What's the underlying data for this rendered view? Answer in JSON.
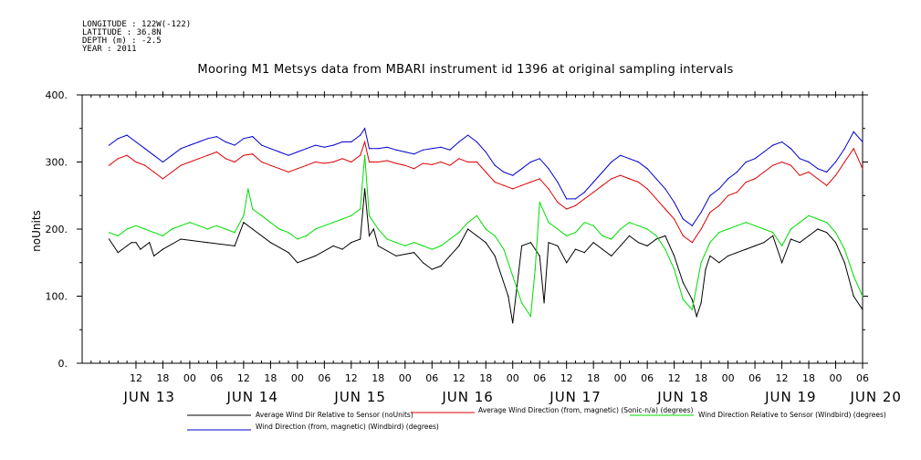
{
  "metadata": [
    "LONGITUDE : 122W(-122)",
    "LATITUDE : 36.8N",
    "DEPTH (m) : -2.5",
    "YEAR : 2011"
  ],
  "chart_data": {
    "type": "line",
    "title": "Mooring M1 Metsys data from MBARI instrument id 1396 at original sampling intervals",
    "ylabel": "noUnits",
    "xlabel": "",
    "ylim": [
      0,
      400
    ],
    "y_ticks": [
      "0.",
      "100.",
      "200.",
      "300.",
      "400."
    ],
    "y_tick_values": [
      0,
      100,
      200,
      300,
      400
    ],
    "x_range_hours": [
      0,
      174
    ],
    "x_hour_ticks": [
      {
        "h": 12,
        "label": "12"
      },
      {
        "h": 18,
        "label": "18"
      },
      {
        "h": 24,
        "label": "00"
      },
      {
        "h": 30,
        "label": "06"
      },
      {
        "h": 36,
        "label": "12"
      },
      {
        "h": 42,
        "label": "18"
      },
      {
        "h": 48,
        "label": "00"
      },
      {
        "h": 54,
        "label": "06"
      },
      {
        "h": 60,
        "label": "12"
      },
      {
        "h": 66,
        "label": "18"
      },
      {
        "h": 72,
        "label": "00"
      },
      {
        "h": 78,
        "label": "06"
      },
      {
        "h": 84,
        "label": "12"
      },
      {
        "h": 90,
        "label": "18"
      },
      {
        "h": 96,
        "label": "00"
      },
      {
        "h": 102,
        "label": "06"
      },
      {
        "h": 108,
        "label": "12"
      },
      {
        "h": 114,
        "label": "18"
      },
      {
        "h": 120,
        "label": "00"
      },
      {
        "h": 126,
        "label": "06"
      },
      {
        "h": 132,
        "label": "12"
      },
      {
        "h": 138,
        "label": "18"
      },
      {
        "h": 144,
        "label": "00"
      },
      {
        "h": 150,
        "label": "06"
      },
      {
        "h": 156,
        "label": "12"
      },
      {
        "h": 162,
        "label": "18"
      },
      {
        "h": 168,
        "label": "00"
      },
      {
        "h": 174,
        "label": "06"
      }
    ],
    "x_day_labels": [
      {
        "h": 15,
        "label": "JUN 13"
      },
      {
        "h": 38,
        "label": "JUN 14"
      },
      {
        "h": 62,
        "label": "JUN 15"
      },
      {
        "h": 86,
        "label": "JUN 16"
      },
      {
        "h": 110,
        "label": "JUN 17"
      },
      {
        "h": 134,
        "label": "JUN 18"
      },
      {
        "h": 158,
        "label": "JUN 19"
      },
      {
        "h": 177,
        "label": "JUN 20"
      }
    ],
    "series": [
      {
        "name": "Average Wind Dir Relative to Sensor (noUnits)",
        "color": "#000000",
        "x": [
          6,
          8,
          10,
          11,
          12,
          13,
          14,
          15,
          16,
          18,
          22,
          28,
          34,
          36,
          38,
          42,
          46,
          48,
          52,
          56,
          58,
          60,
          62,
          63,
          64,
          65,
          66,
          70,
          74,
          76,
          78,
          80,
          82,
          84,
          86,
          88,
          90,
          92,
          95,
          96,
          98,
          100,
          102,
          103,
          104,
          106,
          108,
          110,
          112,
          114,
          116,
          118,
          120,
          122,
          124,
          126,
          128,
          130,
          132,
          134,
          136,
          137,
          138,
          139,
          140,
          142,
          144,
          146,
          148,
          150,
          152,
          154,
          156,
          158,
          160,
          162,
          164,
          166,
          168,
          170,
          172,
          174
        ],
        "values": [
          185,
          165,
          175,
          180,
          180,
          170,
          175,
          180,
          160,
          170,
          185,
          180,
          175,
          210,
          200,
          180,
          165,
          150,
          160,
          175,
          170,
          180,
          185,
          260,
          190,
          200,
          175,
          160,
          165,
          150,
          140,
          145,
          160,
          175,
          200,
          190,
          180,
          160,
          100,
          60,
          175,
          180,
          160,
          90,
          180,
          175,
          150,
          170,
          165,
          180,
          170,
          160,
          175,
          190,
          180,
          175,
          185,
          190,
          160,
          120,
          95,
          70,
          90,
          140,
          160,
          150,
          160,
          165,
          170,
          175,
          180,
          190,
          150,
          185,
          180,
          190,
          200,
          195,
          180,
          150,
          100,
          80
        ]
      },
      {
        "name": "Average Wind Direction (from, magnetic) (Sonic-n/a) (degrees)",
        "color": "#dd0000",
        "x": [
          6,
          8,
          10,
          12,
          14,
          16,
          18,
          20,
          22,
          24,
          26,
          28,
          30,
          32,
          34,
          36,
          38,
          40,
          42,
          44,
          46,
          48,
          50,
          52,
          54,
          56,
          58,
          60,
          62,
          63,
          64,
          66,
          68,
          70,
          72,
          74,
          76,
          78,
          80,
          82,
          84,
          86,
          88,
          90,
          92,
          94,
          96,
          98,
          100,
          102,
          104,
          106,
          108,
          110,
          112,
          114,
          116,
          118,
          120,
          122,
          124,
          126,
          128,
          130,
          132,
          134,
          136,
          138,
          140,
          142,
          144,
          146,
          148,
          150,
          152,
          154,
          156,
          158,
          160,
          162,
          164,
          166,
          168,
          170,
          172,
          174
        ],
        "values": [
          295,
          305,
          310,
          300,
          295,
          285,
          275,
          285,
          295,
          300,
          305,
          310,
          315,
          305,
          300,
          310,
          312,
          300,
          295,
          290,
          285,
          290,
          295,
          300,
          298,
          300,
          305,
          300,
          310,
          330,
          300,
          300,
          302,
          298,
          295,
          290,
          298,
          296,
          300,
          295,
          305,
          300,
          300,
          285,
          270,
          265,
          260,
          265,
          270,
          275,
          260,
          240,
          230,
          235,
          245,
          255,
          265,
          275,
          280,
          275,
          270,
          260,
          245,
          230,
          215,
          190,
          180,
          200,
          225,
          235,
          250,
          255,
          270,
          275,
          285,
          295,
          300,
          295,
          280,
          285,
          275,
          265,
          280,
          300,
          320,
          290
        ]
      },
      {
        "name": "Wind Direction Relative to Sensor (Windbird) (degrees)",
        "color": "#00dd00",
        "x": [
          6,
          8,
          10,
          12,
          14,
          16,
          18,
          20,
          22,
          24,
          26,
          28,
          30,
          32,
          34,
          36,
          37,
          38,
          40,
          42,
          44,
          46,
          48,
          50,
          52,
          54,
          56,
          58,
          60,
          62,
          63,
          64,
          66,
          68,
          70,
          72,
          74,
          76,
          78,
          80,
          82,
          84,
          86,
          88,
          90,
          92,
          94,
          96,
          98,
          100,
          101,
          102,
          104,
          106,
          108,
          110,
          112,
          114,
          116,
          118,
          120,
          122,
          124,
          126,
          128,
          130,
          132,
          134,
          136,
          138,
          140,
          142,
          144,
          146,
          148,
          150,
          152,
          154,
          156,
          158,
          160,
          162,
          164,
          166,
          168,
          170,
          172,
          174
        ],
        "values": [
          195,
          190,
          200,
          205,
          200,
          195,
          190,
          200,
          205,
          210,
          205,
          200,
          205,
          200,
          195,
          220,
          260,
          230,
          220,
          210,
          200,
          195,
          185,
          190,
          200,
          205,
          210,
          215,
          220,
          230,
          310,
          220,
          200,
          185,
          180,
          175,
          180,
          175,
          170,
          175,
          185,
          195,
          210,
          220,
          200,
          190,
          170,
          130,
          90,
          70,
          140,
          240,
          210,
          200,
          190,
          195,
          210,
          205,
          190,
          185,
          200,
          210,
          205,
          200,
          190,
          170,
          140,
          95,
          80,
          150,
          180,
          195,
          200,
          205,
          210,
          205,
          200,
          195,
          175,
          200,
          210,
          220,
          215,
          210,
          195,
          170,
          130,
          100
        ]
      },
      {
        "name": "Wind Direction (from, magnetic) (Windbird) (degrees)",
        "color": "#0000cc",
        "x": [
          6,
          8,
          10,
          12,
          14,
          16,
          18,
          20,
          22,
          24,
          26,
          28,
          30,
          32,
          34,
          36,
          38,
          40,
          42,
          44,
          46,
          48,
          50,
          52,
          54,
          56,
          58,
          60,
          62,
          63,
          64,
          66,
          68,
          70,
          72,
          74,
          76,
          78,
          80,
          82,
          84,
          86,
          88,
          90,
          92,
          94,
          96,
          98,
          100,
          102,
          104,
          106,
          108,
          110,
          112,
          114,
          116,
          118,
          120,
          122,
          124,
          126,
          128,
          130,
          132,
          134,
          136,
          138,
          140,
          142,
          144,
          146,
          148,
          150,
          152,
          154,
          156,
          158,
          160,
          162,
          164,
          166,
          168,
          170,
          172,
          174
        ],
        "values": [
          325,
          335,
          340,
          330,
          320,
          310,
          300,
          310,
          320,
          325,
          330,
          335,
          338,
          330,
          325,
          335,
          338,
          325,
          320,
          315,
          310,
          315,
          320,
          325,
          322,
          325,
          330,
          330,
          340,
          350,
          320,
          320,
          322,
          318,
          315,
          312,
          318,
          320,
          322,
          318,
          330,
          340,
          330,
          315,
          295,
          285,
          280,
          290,
          300,
          305,
          290,
          270,
          245,
          245,
          255,
          270,
          285,
          300,
          310,
          305,
          300,
          290,
          275,
          260,
          240,
          215,
          205,
          225,
          250,
          260,
          275,
          285,
          300,
          305,
          315,
          325,
          330,
          320,
          305,
          300,
          290,
          285,
          300,
          320,
          345,
          330
        ]
      }
    ],
    "legend": "bottom"
  }
}
